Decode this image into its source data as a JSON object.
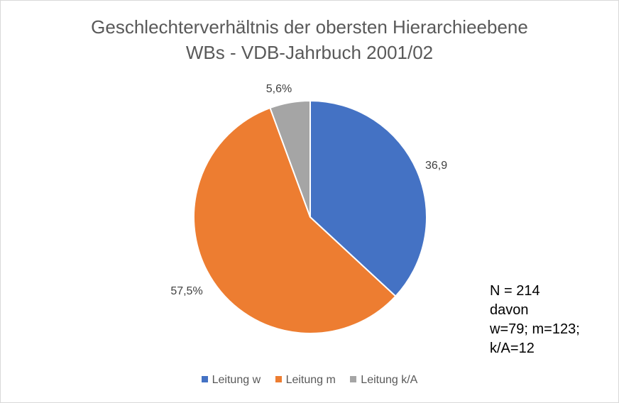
{
  "title": {
    "line1": "Geschlechterverhältnis der obersten Hierarchieebene",
    "line2": "WBs - VDB-Jahrbuch 2001/02"
  },
  "chart_data": {
    "type": "pie",
    "title": "Geschlechterverhältnis der obersten Hierarchieebene WBs - VDB-Jahrbuch 2001/02",
    "categories": [
      "Leitung w",
      "Leitung m",
      "Leitung k/A"
    ],
    "values": [
      36.9,
      57.5,
      5.6
    ],
    "data_labels": [
      "36,9",
      "57,5%",
      "5,6%"
    ],
    "colors": [
      "#4472c4",
      "#ed7d31",
      "#a5a5a5"
    ],
    "legend_position": "bottom",
    "start_angle": "top",
    "direction": "clockwise"
  },
  "note": {
    "lines": [
      "N = 214",
      "davon",
      "w=79; m=123;",
      "k/A=12"
    ]
  },
  "legend": {
    "items": [
      {
        "label": "Leitung w",
        "color": "#4472c4"
      },
      {
        "label": "Leitung m",
        "color": "#ed7d31"
      },
      {
        "label": "Leitung k/A",
        "color": "#a5a5a5"
      }
    ]
  }
}
